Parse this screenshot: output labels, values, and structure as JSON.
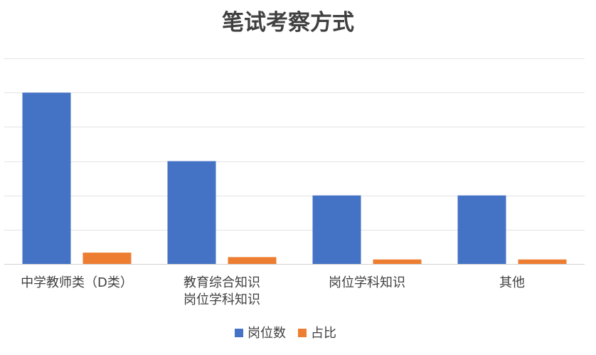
{
  "chart_data": {
    "type": "bar",
    "title": "笔试考察方式",
    "categories": [
      [
        "中学教师类（D类）"
      ],
      [
        "教育综合知识",
        "岗位学科知识"
      ],
      [
        "岗位学科知识"
      ],
      [
        "其他"
      ]
    ],
    "series": [
      {
        "name": "岗位数",
        "values": [
          5,
          3,
          2,
          2
        ],
        "color": "#4472C4"
      },
      {
        "name": "占比",
        "values": [
          0.33,
          0.2,
          0.13,
          0.13
        ],
        "color": "#ED7D31"
      }
    ],
    "ylim": [
      0,
      6
    ],
    "grid": true,
    "legend": "bottom"
  }
}
